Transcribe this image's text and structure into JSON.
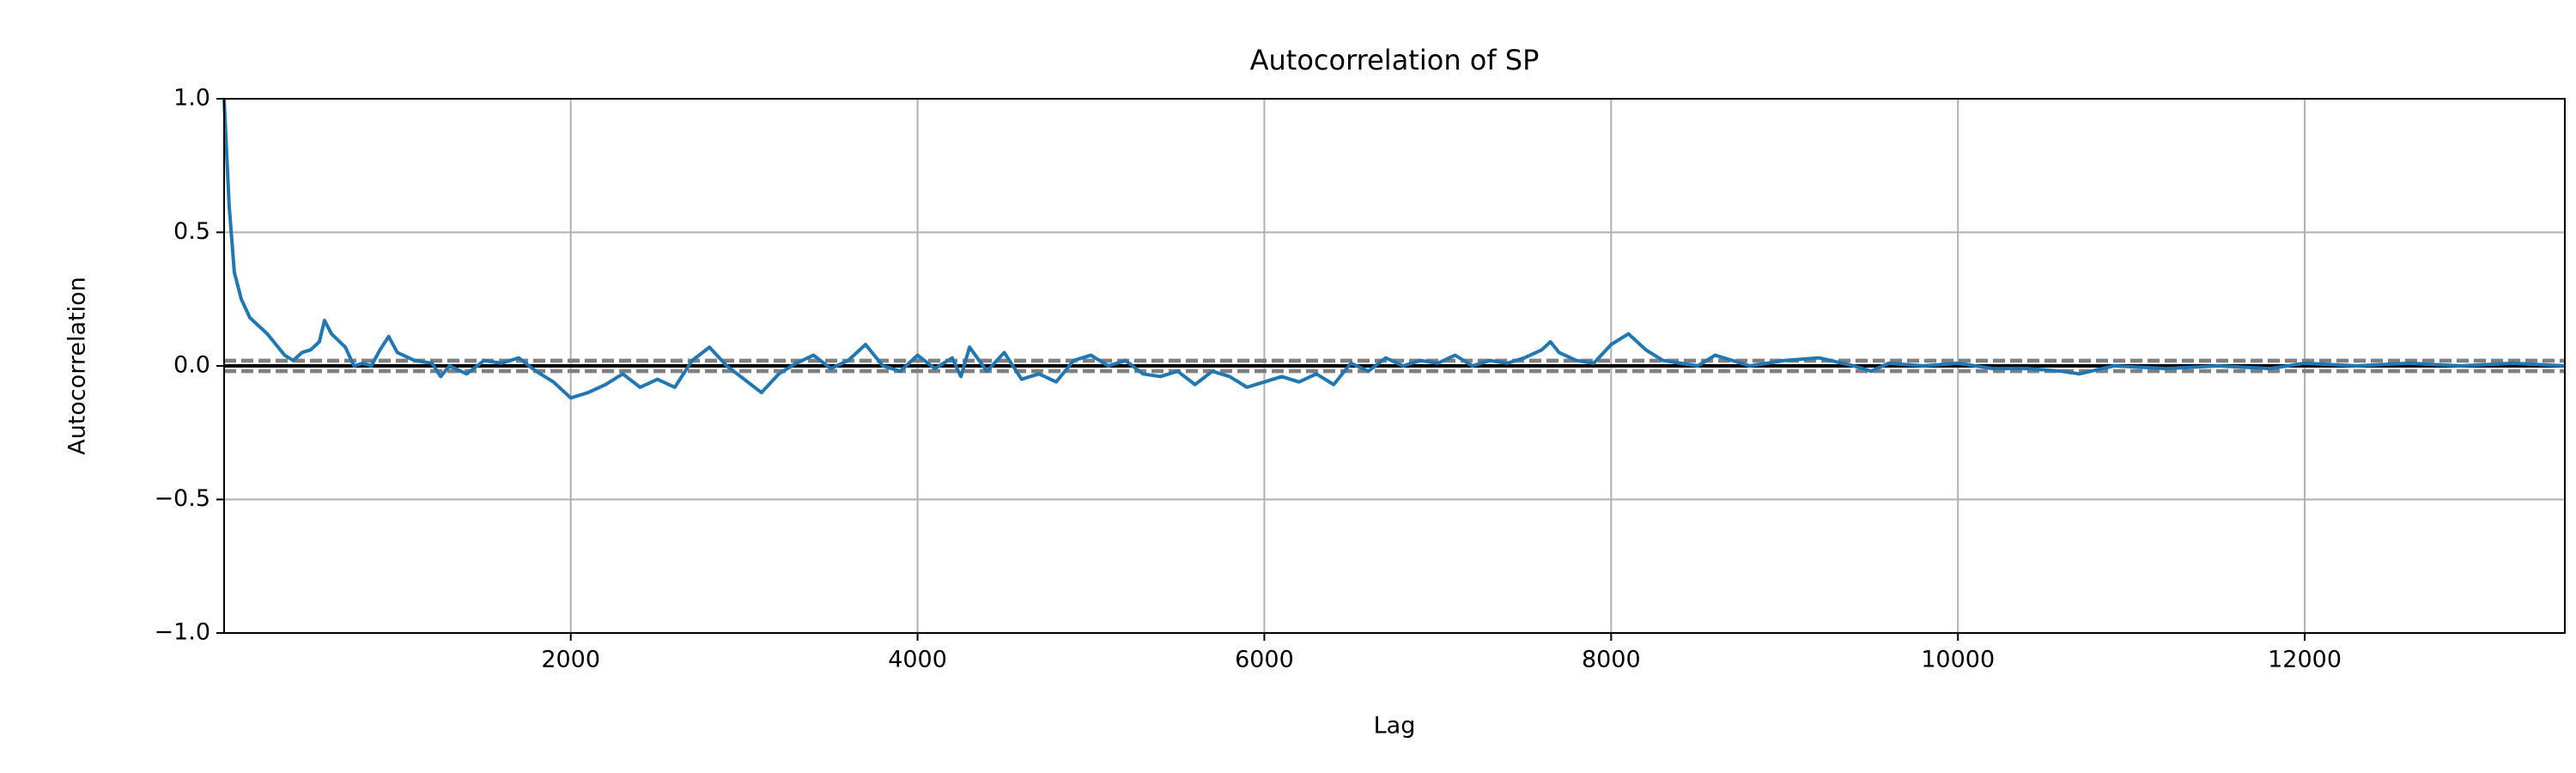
{
  "chart_data": {
    "type": "line",
    "title": "Autocorrelation of SP",
    "x_label": "Lag",
    "y_label": "Autocorrelation",
    "x": [
      1,
      30,
      60,
      100,
      150,
      200,
      250,
      300,
      350,
      400,
      450,
      500,
      550,
      580,
      620,
      700,
      750,
      800,
      850,
      900,
      950,
      1000,
      1100,
      1200,
      1250,
      1300,
      1400,
      1500,
      1600,
      1700,
      1800,
      1900,
      2000,
      2100,
      2200,
      2300,
      2400,
      2500,
      2600,
      2700,
      2800,
      2900,
      3000,
      3100,
      3200,
      3300,
      3400,
      3500,
      3600,
      3700,
      3800,
      3900,
      4000,
      4100,
      4200,
      4250,
      4300,
      4400,
      4500,
      4600,
      4700,
      4800,
      4900,
      5000,
      5100,
      5200,
      5300,
      5400,
      5500,
      5600,
      5700,
      5800,
      5900,
      6000,
      6100,
      6200,
      6300,
      6400,
      6500,
      6600,
      6700,
      6800,
      6900,
      7000,
      7100,
      7200,
      7300,
      7400,
      7500,
      7600,
      7650,
      7700,
      7800,
      7900,
      8000,
      8100,
      8200,
      8300,
      8400,
      8500,
      8600,
      8700,
      8800,
      8900,
      9000,
      9200,
      9400,
      9500,
      9600,
      9800,
      10000,
      10200,
      10400,
      10600,
      10700,
      10900,
      11200,
      11500,
      11800,
      12000,
      12300,
      12600,
      12900,
      13200,
      13500
    ],
    "series": [
      {
        "color": "#1f77b4",
        "values": [
          1.0,
          0.6,
          0.35,
          0.25,
          0.18,
          0.15,
          0.12,
          0.08,
          0.04,
          0.02,
          0.05,
          0.06,
          0.09,
          0.17,
          0.12,
          0.07,
          0.0,
          0.01,
          0.0,
          0.06,
          0.11,
          0.05,
          0.02,
          0.01,
          -0.04,
          0.0,
          -0.03,
          0.02,
          0.01,
          0.03,
          -0.02,
          -0.06,
          -0.12,
          -0.1,
          -0.07,
          -0.03,
          -0.08,
          -0.05,
          -0.08,
          0.02,
          0.07,
          0.0,
          -0.05,
          -0.1,
          -0.03,
          0.01,
          0.04,
          -0.01,
          0.02,
          0.08,
          0.0,
          -0.02,
          0.04,
          -0.01,
          0.03,
          -0.04,
          0.07,
          -0.02,
          0.05,
          -0.05,
          -0.03,
          -0.06,
          0.02,
          0.04,
          0.0,
          0.02,
          -0.03,
          -0.04,
          -0.02,
          -0.07,
          -0.02,
          -0.04,
          -0.08,
          -0.06,
          -0.04,
          -0.06,
          -0.03,
          -0.07,
          0.01,
          -0.02,
          0.03,
          0.0,
          0.02,
          0.01,
          0.04,
          0.0,
          0.02,
          0.01,
          0.03,
          0.06,
          0.09,
          0.05,
          0.02,
          0.01,
          0.08,
          0.12,
          0.06,
          0.02,
          0.01,
          0.0,
          0.04,
          0.02,
          0.0,
          0.01,
          0.02,
          0.03,
          0.0,
          -0.02,
          0.01,
          0.0,
          0.01,
          -0.01,
          -0.01,
          -0.02,
          -0.03,
          0.0,
          -0.01,
          0.0,
          -0.01,
          0.01,
          0.0,
          0.01,
          0.0,
          0.01,
          0.0
        ]
      }
    ],
    "reference_lines": [
      {
        "value": 0,
        "color": "#000000",
        "dashed": false
      },
      {
        "value": 0.0169,
        "color": "#808080",
        "dashed": true
      },
      {
        "value": -0.0169,
        "color": "#808080",
        "dashed": true
      },
      {
        "value": 0.0222,
        "color": "#808080",
        "dashed": true
      },
      {
        "value": -0.0222,
        "color": "#808080",
        "dashed": true
      }
    ],
    "xlim": [
      1,
      13500
    ],
    "ylim": [
      -1,
      1
    ],
    "xticks": [
      2000,
      4000,
      6000,
      8000,
      10000,
      12000
    ],
    "yticks": [
      {
        "value": -1,
        "label": "−1.0"
      },
      {
        "value": -0.5,
        "label": "−0.5"
      },
      {
        "value": 0,
        "label": "0.0"
      },
      0.5,
      {
        "value": 1,
        "label": "1.0"
      }
    ],
    "grid": true
  }
}
